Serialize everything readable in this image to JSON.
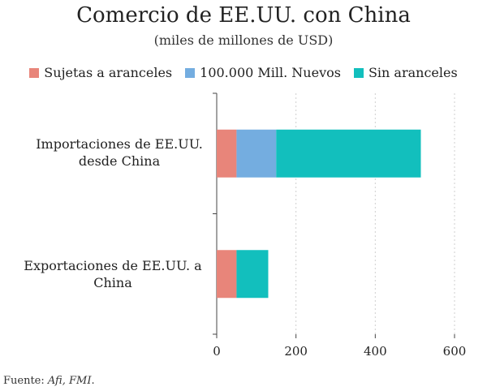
{
  "chart_data": {
    "type": "bar",
    "orientation": "horizontal",
    "stacked": true,
    "title": "Comercio de EE.UU. con China",
    "subtitle": "(miles de millones de USD)",
    "categories": [
      "Importaciones de EE.UU. desde China",
      "Exportaciones de EE.UU. a China"
    ],
    "series": [
      {
        "name": "Sujetas a aranceles",
        "color": "#e8857a",
        "values": [
          50,
          50
        ]
      },
      {
        "name": "100.000 Mill. Nuevos",
        "color": "#74ade0",
        "values": [
          100,
          0
        ]
      },
      {
        "name": "Sin aranceles",
        "color": "#12bfbd",
        "values": [
          365,
          80
        ]
      }
    ],
    "xlim": [
      0,
      600
    ],
    "xticks": [
      0,
      200,
      400,
      600
    ],
    "grid": true,
    "legend_position": "top",
    "xlabel": "",
    "ylabel": ""
  },
  "source": {
    "prefix": "Fuente: ",
    "name": "Afi, FMI",
    "suffix": "."
  }
}
